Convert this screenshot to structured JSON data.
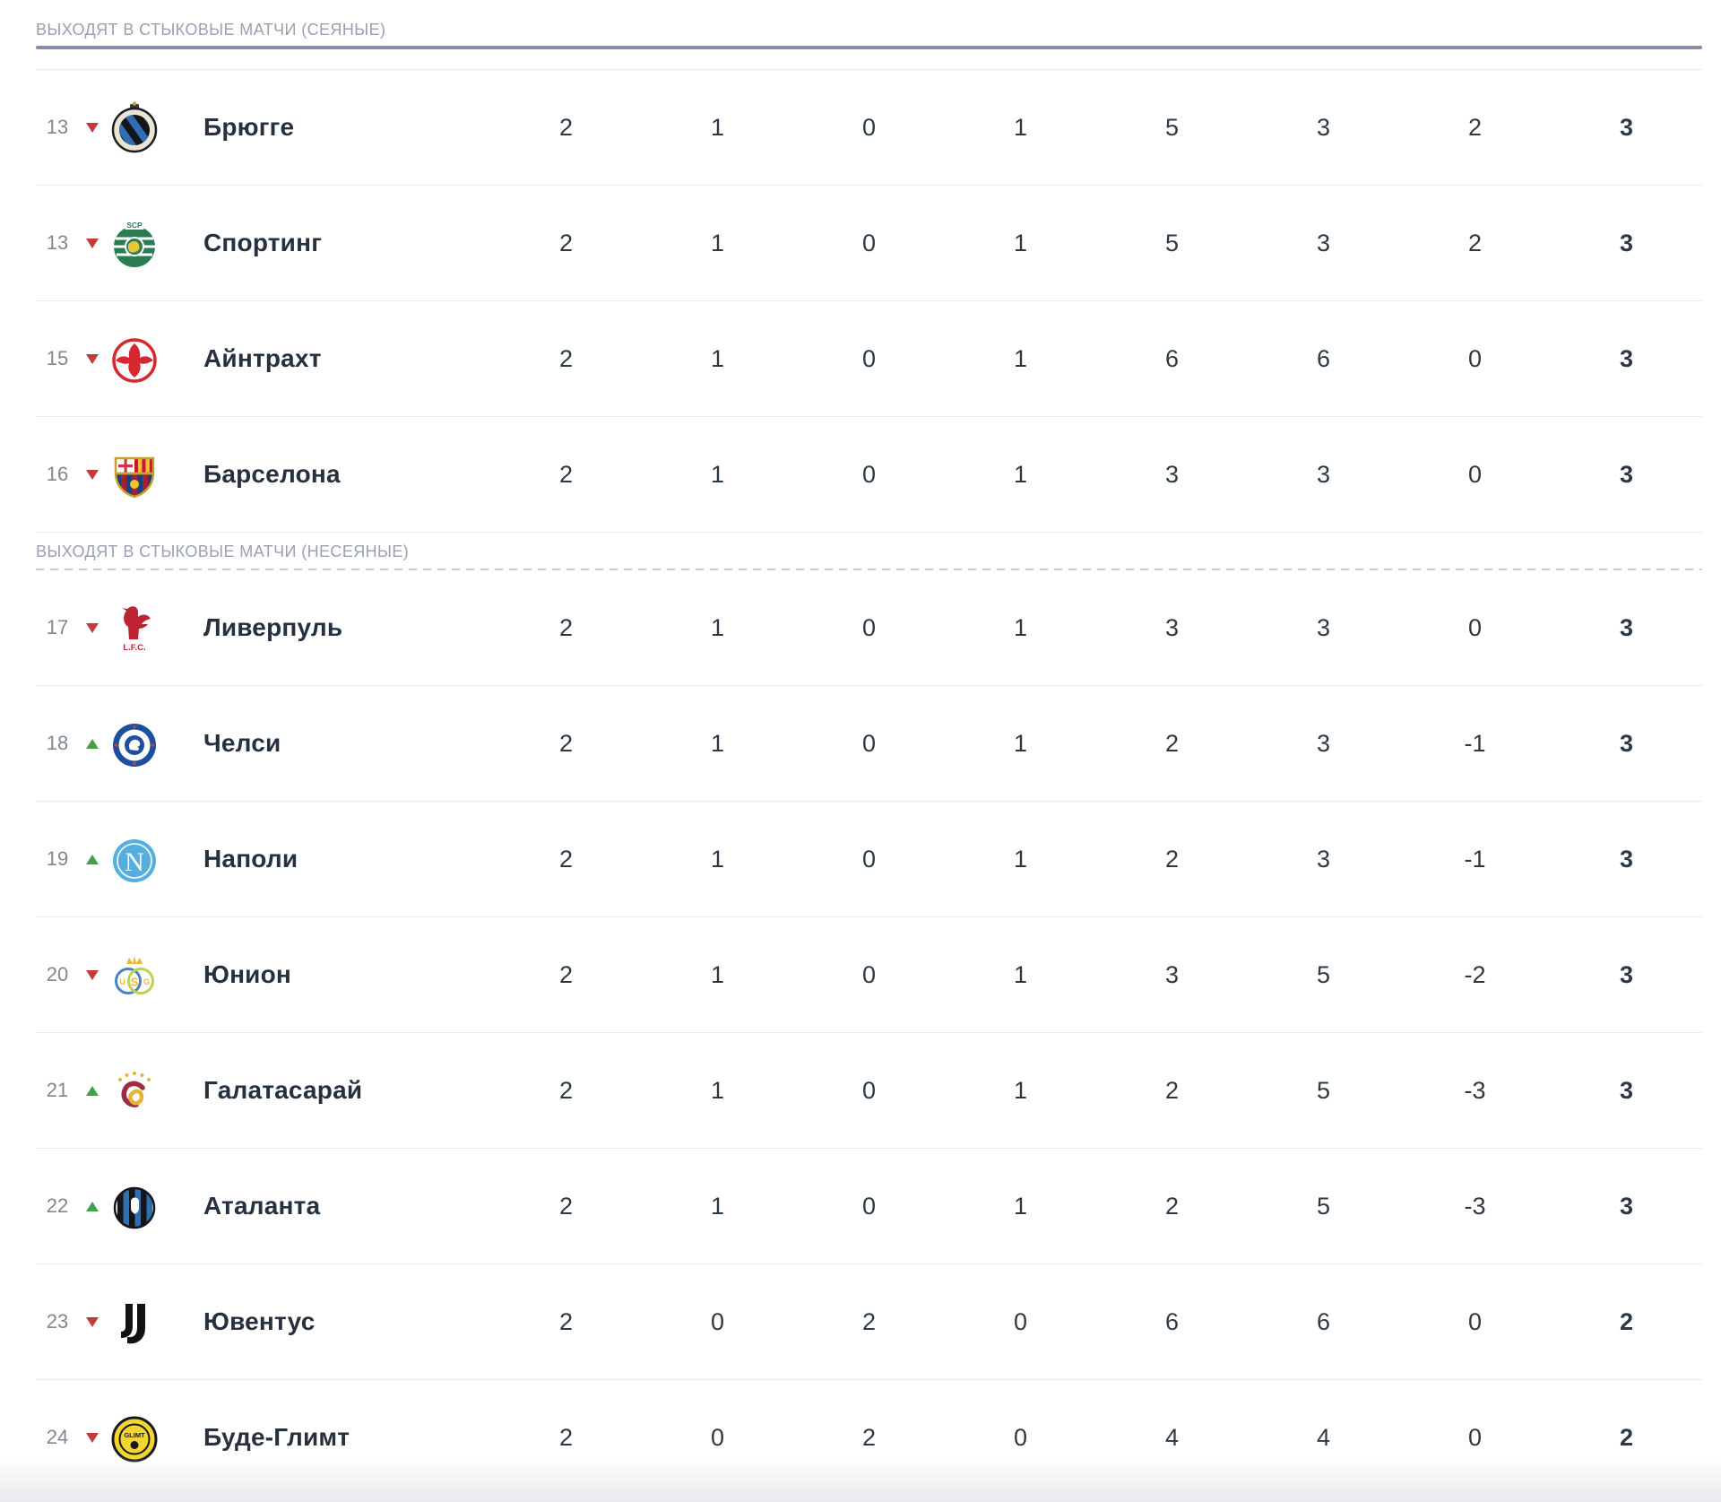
{
  "colors": {
    "text_primary": "#25313e",
    "numbers": "#2c3945",
    "rank": "#7e8894",
    "up": "#43a047",
    "down": "#c13b3b",
    "section_label": "#9aa0b2",
    "section_line": "#888ea4",
    "separator": "#e9ebf0",
    "dashed_line": "#caccd5"
  },
  "table": {
    "sections": [
      {
        "id": "seeded",
        "label": "ВЫХОДЯТ В СТЫКОВЫЕ МАТЧИ (СЕЯНЫЕ)",
        "divider_style": "solid",
        "teams": [
          {
            "rank": "13",
            "trend": "down",
            "name": "Брюгге",
            "logo": "brugge",
            "stats": {
              "played": "2",
              "wins": "1",
              "draws": "0",
              "losses": "1",
              "goals_for": "5",
              "goals_against": "3",
              "goal_diff": "2",
              "points": "3"
            }
          },
          {
            "rank": "13",
            "trend": "down",
            "name": "Спортинг",
            "logo": "sporting",
            "stats": {
              "played": "2",
              "wins": "1",
              "draws": "0",
              "losses": "1",
              "goals_for": "5",
              "goals_against": "3",
              "goal_diff": "2",
              "points": "3"
            }
          },
          {
            "rank": "15",
            "trend": "down",
            "name": "Айнтрахт",
            "logo": "eintracht",
            "stats": {
              "played": "2",
              "wins": "1",
              "draws": "0",
              "losses": "1",
              "goals_for": "6",
              "goals_against": "6",
              "goal_diff": "0",
              "points": "3"
            }
          },
          {
            "rank": "16",
            "trend": "down",
            "name": "Барселона",
            "logo": "barcelona",
            "stats": {
              "played": "2",
              "wins": "1",
              "draws": "0",
              "losses": "1",
              "goals_for": "3",
              "goals_against": "3",
              "goal_diff": "0",
              "points": "3"
            }
          }
        ]
      },
      {
        "id": "unseeded",
        "label": "ВЫХОДЯТ В СТЫКОВЫЕ МАТЧИ (НЕСЕЯНЫЕ)",
        "divider_style": "dashed",
        "teams": [
          {
            "rank": "17",
            "trend": "down",
            "name": "Ливерпуль",
            "logo": "liverpool",
            "stats": {
              "played": "2",
              "wins": "1",
              "draws": "0",
              "losses": "1",
              "goals_for": "3",
              "goals_against": "3",
              "goal_diff": "0",
              "points": "3"
            }
          },
          {
            "rank": "18",
            "trend": "up",
            "name": "Челси",
            "logo": "chelsea",
            "stats": {
              "played": "2",
              "wins": "1",
              "draws": "0",
              "losses": "1",
              "goals_for": "2",
              "goals_against": "3",
              "goal_diff": "-1",
              "points": "3"
            }
          },
          {
            "rank": "19",
            "trend": "up",
            "name": "Наполи",
            "logo": "napoli",
            "stats": {
              "played": "2",
              "wins": "1",
              "draws": "0",
              "losses": "1",
              "goals_for": "2",
              "goals_against": "3",
              "goal_diff": "-1",
              "points": "3"
            }
          },
          {
            "rank": "20",
            "trend": "down",
            "name": "Юнион",
            "logo": "union",
            "stats": {
              "played": "2",
              "wins": "1",
              "draws": "0",
              "losses": "1",
              "goals_for": "3",
              "goals_against": "5",
              "goal_diff": "-2",
              "points": "3"
            }
          },
          {
            "rank": "21",
            "trend": "up",
            "name": "Галатасарай",
            "logo": "galatasaray",
            "stats": {
              "played": "2",
              "wins": "1",
              "draws": "0",
              "losses": "1",
              "goals_for": "2",
              "goals_against": "5",
              "goal_diff": "-3",
              "points": "3"
            }
          },
          {
            "rank": "22",
            "trend": "up",
            "name": "Аталанта",
            "logo": "atalanta",
            "stats": {
              "played": "2",
              "wins": "1",
              "draws": "0",
              "losses": "1",
              "goals_for": "2",
              "goals_against": "5",
              "goal_diff": "-3",
              "points": "3"
            }
          },
          {
            "rank": "23",
            "trend": "down",
            "name": "Ювентус",
            "logo": "juventus",
            "stats": {
              "played": "2",
              "wins": "0",
              "draws": "2",
              "losses": "0",
              "goals_for": "6",
              "goals_against": "6",
              "goal_diff": "0",
              "points": "2"
            }
          },
          {
            "rank": "24",
            "trend": "down",
            "name": "Буде-Глимт",
            "logo": "bodo-glimt",
            "stats": {
              "played": "2",
              "wins": "0",
              "draws": "2",
              "losses": "0",
              "goals_for": "4",
              "goals_against": "4",
              "goal_diff": "0",
              "points": "2"
            }
          }
        ]
      }
    ]
  }
}
